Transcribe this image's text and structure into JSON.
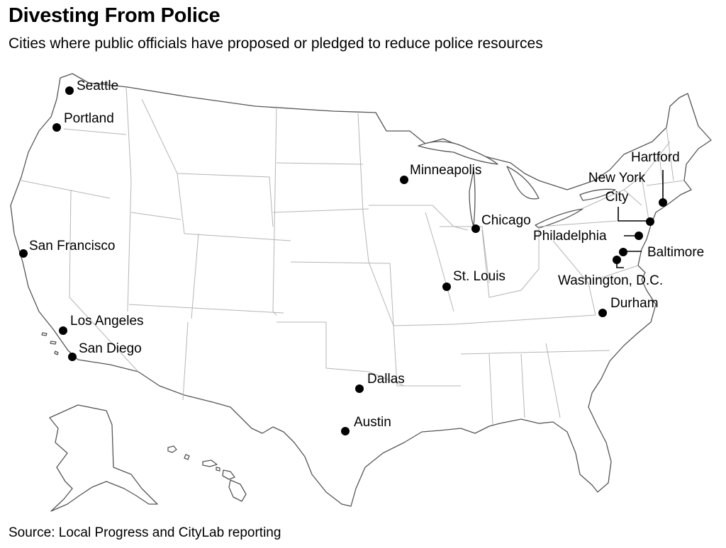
{
  "title": "Divesting From Police",
  "subtitle": "Cities where public officials have proposed or pledged to reduce police resources",
  "source": "Source: Local Progress and CityLab reporting",
  "map": {
    "region": "United States (lower 48, Alaska, Hawaii)",
    "marker_color": "#000000",
    "cities": [
      {
        "id": "seattle",
        "label": [
          "Seattle"
        ]
      },
      {
        "id": "portland",
        "label": [
          "Portland"
        ]
      },
      {
        "id": "san-francisco",
        "label": [
          "San Francisco"
        ]
      },
      {
        "id": "los-angeles",
        "label": [
          "Los Angeles"
        ]
      },
      {
        "id": "san-diego",
        "label": [
          "San Diego"
        ]
      },
      {
        "id": "minneapolis",
        "label": [
          "Minneapolis"
        ]
      },
      {
        "id": "chicago",
        "label": [
          "Chicago"
        ]
      },
      {
        "id": "st-louis",
        "label": [
          "St. Louis"
        ]
      },
      {
        "id": "dallas",
        "label": [
          "Dallas"
        ]
      },
      {
        "id": "austin",
        "label": [
          "Austin"
        ]
      },
      {
        "id": "hartford",
        "label": [
          "Hartford"
        ]
      },
      {
        "id": "new-york-city",
        "label": [
          "New York",
          "City"
        ]
      },
      {
        "id": "philadelphia",
        "label": [
          "Philadelphia"
        ]
      },
      {
        "id": "baltimore",
        "label": [
          "Baltimore"
        ]
      },
      {
        "id": "washington-dc",
        "label": [
          "Washington, D.C."
        ]
      },
      {
        "id": "durham",
        "label": [
          "Durham"
        ]
      }
    ]
  }
}
